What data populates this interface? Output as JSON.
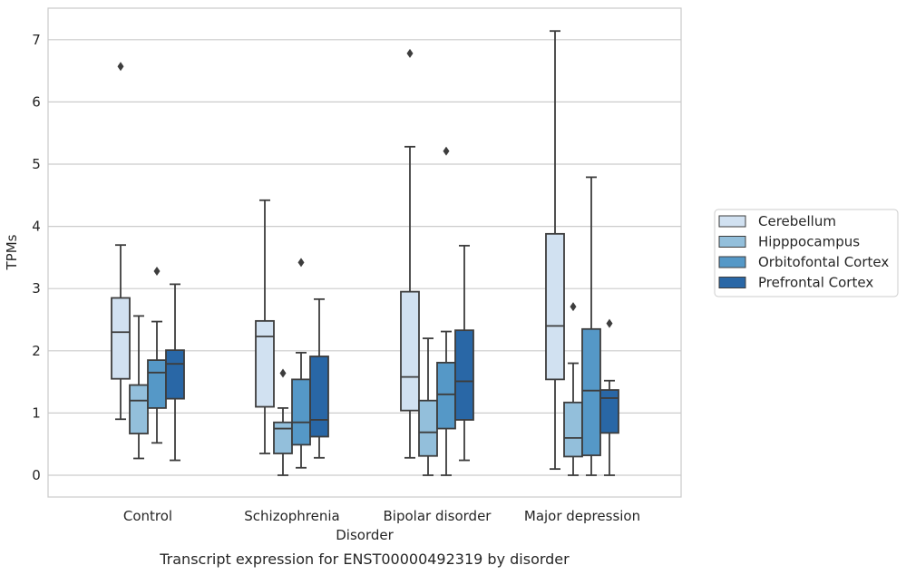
{
  "chart_data": {
    "type": "boxplot",
    "title": "",
    "caption": "Transcript expression for ENST00000492319 by disorder",
    "xlabel": "Disorder",
    "ylabel": "TPMs",
    "ylim": [
      -0.35,
      7.5
    ],
    "yticks": [
      0,
      1,
      2,
      3,
      4,
      5,
      6,
      7
    ],
    "categories": [
      "Control",
      "Schizophrenia",
      "Bipolar disorder",
      "Major depression"
    ],
    "grid": true,
    "legend_position": "right",
    "series": [
      {
        "name": "Cerebellum",
        "color": "#d1e1f1",
        "boxes": [
          {
            "whislo": 0.9,
            "q1": 1.55,
            "med": 2.3,
            "q3": 2.85,
            "whishi": 3.7,
            "fliers": [
              6.57
            ]
          },
          {
            "whislo": 0.35,
            "q1": 1.1,
            "med": 2.23,
            "q3": 2.48,
            "whishi": 4.42,
            "fliers": []
          },
          {
            "whislo": 0.28,
            "q1": 1.04,
            "med": 1.58,
            "q3": 2.95,
            "whishi": 5.28,
            "fliers": [
              6.78
            ]
          },
          {
            "whislo": 0.1,
            "q1": 1.54,
            "med": 2.4,
            "q3": 3.88,
            "whishi": 7.14,
            "fliers": []
          }
        ]
      },
      {
        "name": "Hipppocampus",
        "color": "#93bfdb",
        "boxes": [
          {
            "whislo": 0.27,
            "q1": 0.67,
            "med": 1.2,
            "q3": 1.45,
            "whishi": 2.56,
            "fliers": []
          },
          {
            "whislo": 0.0,
            "q1": 0.35,
            "med": 0.75,
            "q3": 0.85,
            "whishi": 1.08,
            "fliers": [
              1.64
            ]
          },
          {
            "whislo": 0.0,
            "q1": 0.31,
            "med": 0.69,
            "q3": 1.2,
            "whishi": 2.2,
            "fliers": []
          },
          {
            "whislo": 0.0,
            "q1": 0.3,
            "med": 0.6,
            "q3": 1.17,
            "whishi": 1.8,
            "fliers": [
              2.71
            ]
          }
        ]
      },
      {
        "name": "Orbitofontal Cortex",
        "color": "#5598c7",
        "boxes": [
          {
            "whislo": 0.52,
            "q1": 1.08,
            "med": 1.65,
            "q3": 1.85,
            "whishi": 2.47,
            "fliers": [
              3.28
            ]
          },
          {
            "whislo": 0.12,
            "q1": 0.49,
            "med": 0.85,
            "q3": 1.54,
            "whishi": 1.97,
            "fliers": [
              3.42
            ]
          },
          {
            "whislo": 0.0,
            "q1": 0.75,
            "med": 1.3,
            "q3": 1.81,
            "whishi": 2.31,
            "fliers": [
              5.21
            ]
          },
          {
            "whislo": 0.0,
            "q1": 0.32,
            "med": 1.36,
            "q3": 2.35,
            "whishi": 4.79,
            "fliers": []
          }
        ]
      },
      {
        "name": "Prefrontal Cortex",
        "color": "#2967a6",
        "boxes": [
          {
            "whislo": 0.24,
            "q1": 1.23,
            "med": 1.79,
            "q3": 2.01,
            "whishi": 3.07,
            "fliers": []
          },
          {
            "whislo": 0.28,
            "q1": 0.62,
            "med": 0.89,
            "q3": 1.91,
            "whishi": 2.83,
            "fliers": []
          },
          {
            "whislo": 0.24,
            "q1": 0.89,
            "med": 1.51,
            "q3": 2.33,
            "whishi": 3.69,
            "fliers": []
          },
          {
            "whislo": 0.0,
            "q1": 0.68,
            "med": 1.24,
            "q3": 1.37,
            "whishi": 1.52,
            "fliers": [
              2.44
            ]
          }
        ]
      }
    ]
  }
}
